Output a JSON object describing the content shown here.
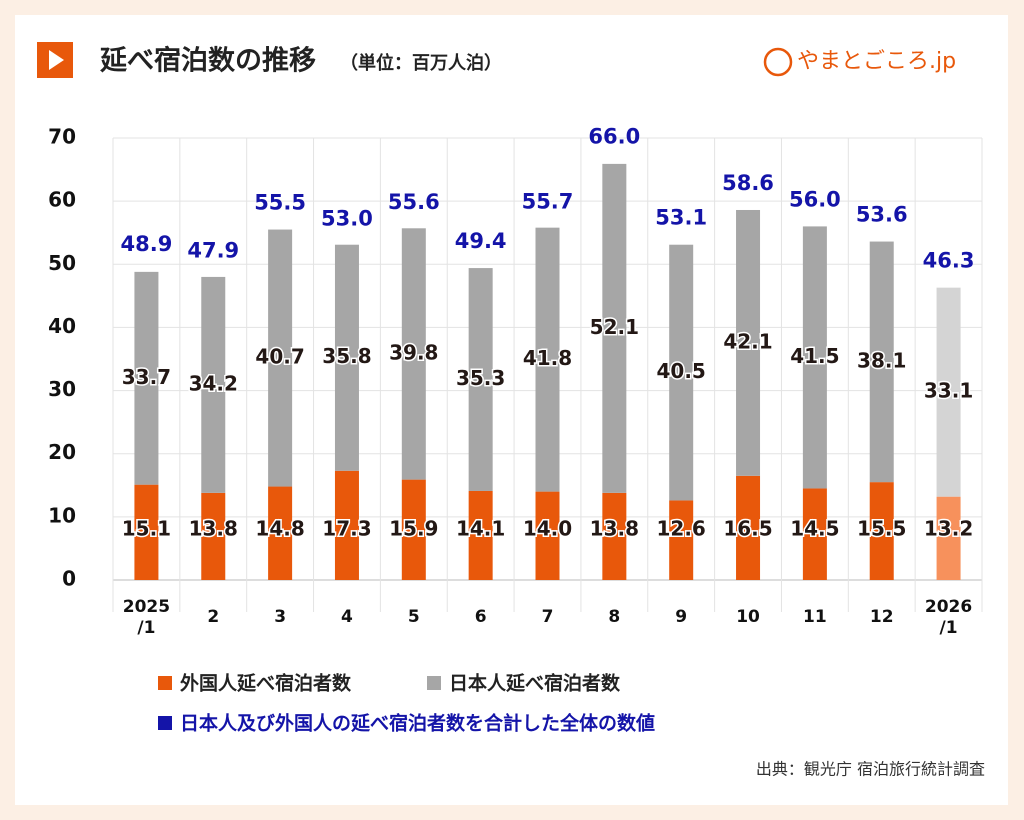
{
  "chart_data": {
    "type": "stacked_bar",
    "title": "延べ宿泊数の推移",
    "subtitle": "（単位：百万人泊）",
    "brand": "やまとごころ.jp",
    "source": "出典：観光庁 宿泊旅行統計調査",
    "categories": [
      "2025\n/1",
      "2",
      "3",
      "4",
      "5",
      "6",
      "7",
      "8",
      "9",
      "10",
      "11",
      "12",
      "2026\n/1"
    ],
    "series": [
      {
        "name": "外国人延べ宿泊者数",
        "color": "#e8580b",
        "colors": [
          "#e8580b",
          "#e8580b",
          "#e8580b",
          "#e8580b",
          "#e8580b",
          "#e8580b",
          "#e8580b",
          "#e8580b",
          "#e8580b",
          "#e8580b",
          "#e8580b",
          "#e8580b",
          "#f7915c"
        ],
        "values": [
          15.1,
          13.8,
          14.8,
          17.3,
          15.9,
          14.1,
          14.0,
          13.8,
          12.6,
          16.5,
          14.5,
          15.5,
          13.2
        ],
        "value_labels": [
          "15.1",
          "13.8",
          "14.8",
          "17.3",
          "15.9",
          "14.1",
          "14.0",
          "13.8",
          "12.6",
          "16.5",
          "14.5",
          "15.5",
          "13.2"
        ]
      },
      {
        "name": "日本人延べ宿泊者数",
        "color": "#a6a6a6",
        "colors": [
          "#a6a6a6",
          "#a6a6a6",
          "#a6a6a6",
          "#a6a6a6",
          "#a6a6a6",
          "#a6a6a6",
          "#a6a6a6",
          "#a6a6a6",
          "#a6a6a6",
          "#a6a6a6",
          "#a6a6a6",
          "#a6a6a6",
          "#d4d4d4"
        ],
        "values": [
          33.7,
          34.2,
          40.7,
          35.8,
          39.8,
          35.3,
          41.8,
          52.1,
          40.5,
          42.1,
          41.5,
          38.1,
          33.1
        ],
        "value_labels": [
          "33.7",
          "34.2",
          "40.7",
          "35.8",
          "39.8",
          "35.3",
          "41.8",
          "52.1",
          "40.5",
          "42.1",
          "41.5",
          "38.1",
          "33.1"
        ]
      }
    ],
    "totals": {
      "name": "日本人及び外国人の延べ宿泊者数を合計した全体の数値",
      "color": "#1414a8",
      "values": [
        48.9,
        47.9,
        55.5,
        53.0,
        55.6,
        49.4,
        55.7,
        66.0,
        53.1,
        58.6,
        56.0,
        53.6,
        46.3
      ],
      "value_labels": [
        "48.9",
        "47.9",
        "55.5",
        "53.0",
        "55.6",
        "49.4",
        "55.7",
        "66.0",
        "53.1",
        "58.6",
        "56.0",
        "53.6",
        "46.3"
      ]
    },
    "ylim": [
      0,
      70
    ],
    "yticks": [
      0,
      10,
      20,
      30,
      40,
      50,
      60,
      70
    ],
    "grid": true
  }
}
